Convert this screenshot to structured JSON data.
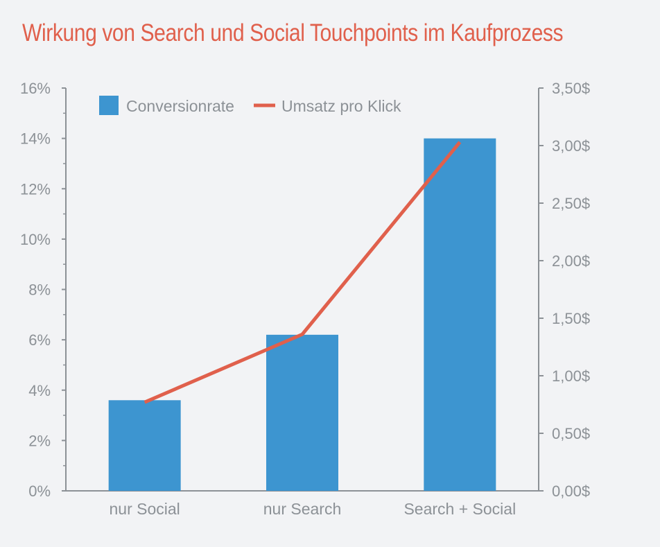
{
  "chart_data": {
    "type": "bar",
    "title": "Wirkung von Search und Social Touchpoints im Kaufprozess",
    "categories": [
      "nur Social",
      "nur Search",
      "Search + Social"
    ],
    "series": [
      {
        "name": "Conversionrate",
        "type": "bar",
        "axis": "left",
        "values": [
          3.6,
          6.2,
          14.0
        ],
        "color": "#3d95d0"
      },
      {
        "name": "Umsatz pro Klick",
        "type": "line",
        "axis": "right",
        "values": [
          0.77,
          1.36,
          3.03
        ],
        "color": "#e0604c"
      }
    ],
    "y_left": {
      "range": [
        0,
        16
      ],
      "ticks": [
        0,
        2,
        4,
        6,
        8,
        10,
        12,
        14,
        16
      ],
      "tick_labels": [
        "0%",
        "2%",
        "4%",
        "6%",
        "8%",
        "10%",
        "12%",
        "14%",
        "16%"
      ]
    },
    "y_right": {
      "range": [
        0,
        3.5
      ],
      "ticks": [
        0,
        0.5,
        1,
        1.5,
        2,
        2.5,
        3,
        3.5
      ],
      "tick_labels": [
        "0,00$",
        "0,50$",
        "1,00$",
        "1,50$",
        "2,00$",
        "2,50$",
        "3,00$",
        "3,50$"
      ]
    },
    "grid": false,
    "legend_position": "top-left",
    "axis_color": "#8c9196"
  }
}
